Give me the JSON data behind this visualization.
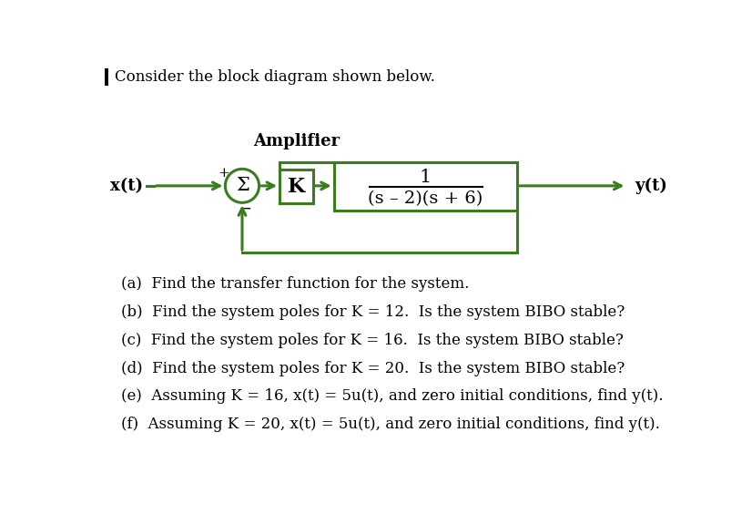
{
  "background_color": "#ffffff",
  "line_color": "#3a7d1e",
  "text_color": "#000000",
  "title_text": "Consider the block diagram shown below.",
  "amplifier_label": "Amplifier",
  "block_K_label": "K",
  "tf_numerator": "1",
  "tf_denominator": "(s – 2)(s + 6)",
  "input_label": "x(t)",
  "output_label": "y(t)",
  "plus_label": "+",
  "minus_label": "−",
  "sigma_label": "Σ",
  "questions": [
    "(a)  Find the transfer function for the system.",
    "(b)  Find the system poles for K = 12.  Is the system BIBO stable?",
    "(c)  Find the system poles for K = 16.  Is the system BIBO stable?",
    "(d)  Find the system poles for K = 20.  Is the system BIBO stable?",
    "(e)  Assuming K = 16, x(t) = 5u(t), and zero initial conditions, find y(t).",
    "(f)  Assuming K = 20, x(t) = 5u(t), and zero initial conditions, find y(t)."
  ],
  "lw": 2.2,
  "fs_title": 12,
  "fs_label": 13,
  "fs_amplifier": 13,
  "fs_block_K": 16,
  "fs_tf_num": 15,
  "fs_tf_den": 14,
  "fs_sigma": 15,
  "fs_plusminus": 11,
  "fs_question": 12
}
